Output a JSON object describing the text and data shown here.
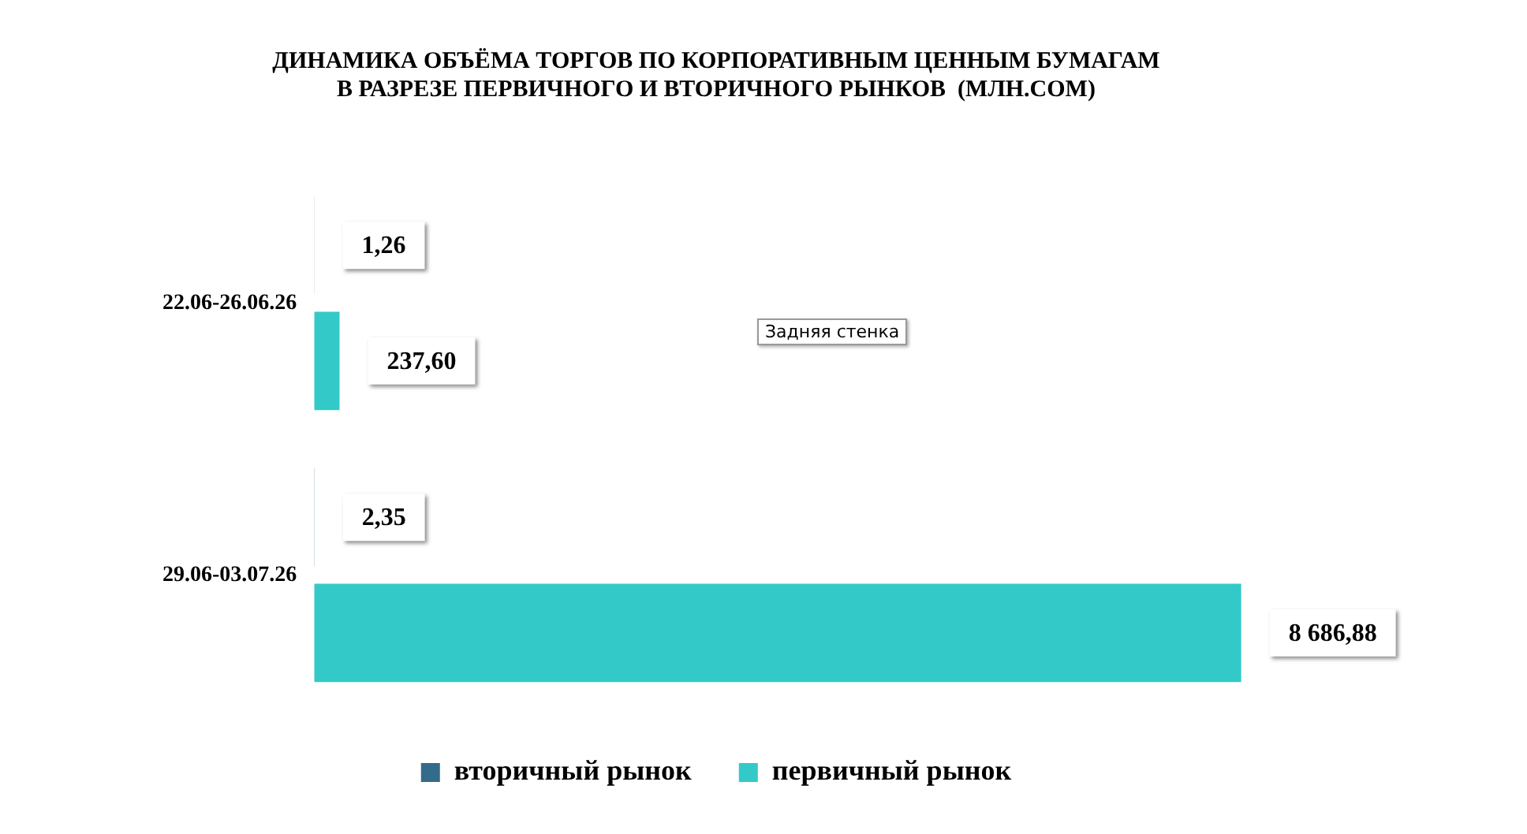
{
  "chart_data": {
    "type": "bar",
    "orientation": "horizontal",
    "title": "ДИНАМИКА ОБЪЁМА ТОРГОВ ПО КОРПОРАТИВНЫМ ЦЕННЫМ БУМАГАМ\nВ РАЗРЕЗЕ ПЕРВИЧНОГО И ВТОРИЧНОГО РЫНКОВ  (МЛН.СОМ)",
    "categories": [
      "22.06-26.06.26",
      "29.06-03.07.26"
    ],
    "series": [
      {
        "name": "вторичный рынок",
        "color": "#336b8a",
        "values": [
          1.26,
          2.35
        ],
        "value_labels": [
          "1,26",
          "2,35"
        ]
      },
      {
        "name": "первичный рынок",
        "color": "#33c9c9",
        "values": [
          237.6,
          8686.88
        ],
        "value_labels": [
          "237,60",
          "8 686,88"
        ]
      }
    ],
    "legend": "bottom",
    "grid": false,
    "tick_labels": "y",
    "annotations": [
      "Задняя стенка"
    ]
  }
}
